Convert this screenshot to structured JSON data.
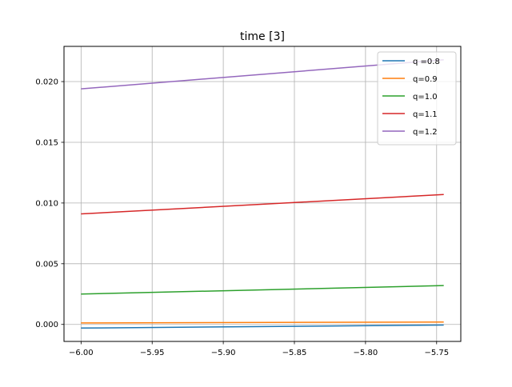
{
  "chart_data": {
    "type": "line",
    "title": "time [3]",
    "xlabel": "",
    "ylabel": "",
    "xlim": [
      -6.012,
      -5.733
    ],
    "ylim": [
      -0.0014,
      0.0229
    ],
    "xticks": [
      -6.0,
      -5.95,
      -5.9,
      -5.85,
      -5.8,
      -5.75
    ],
    "xtick_labels": [
      "−6.00",
      "−5.95",
      "−5.90",
      "−5.85",
      "−5.80",
      "−5.75"
    ],
    "yticks": [
      0.0,
      0.005,
      0.01,
      0.015,
      0.02
    ],
    "ytick_labels": [
      "0.000",
      "0.005",
      "0.010",
      "0.015",
      "0.020"
    ],
    "grid": true,
    "legend_position": "top-right",
    "x": [
      -6.0,
      -5.745
    ],
    "series": [
      {
        "name": "q =0.8",
        "color": "#1f77b4",
        "values": [
          -0.0003,
          -5e-05
        ]
      },
      {
        "name": "q=0.9",
        "color": "#ff7f0e",
        "values": [
          0.00012,
          0.0002
        ]
      },
      {
        "name": "q=1.0",
        "color": "#2ca02c",
        "values": [
          0.0025,
          0.0032
        ]
      },
      {
        "name": "q=1.1",
        "color": "#d62728",
        "values": [
          0.0091,
          0.0107
        ]
      },
      {
        "name": "q=1.2",
        "color": "#9467bd",
        "values": [
          0.0194,
          0.0218
        ]
      }
    ]
  }
}
